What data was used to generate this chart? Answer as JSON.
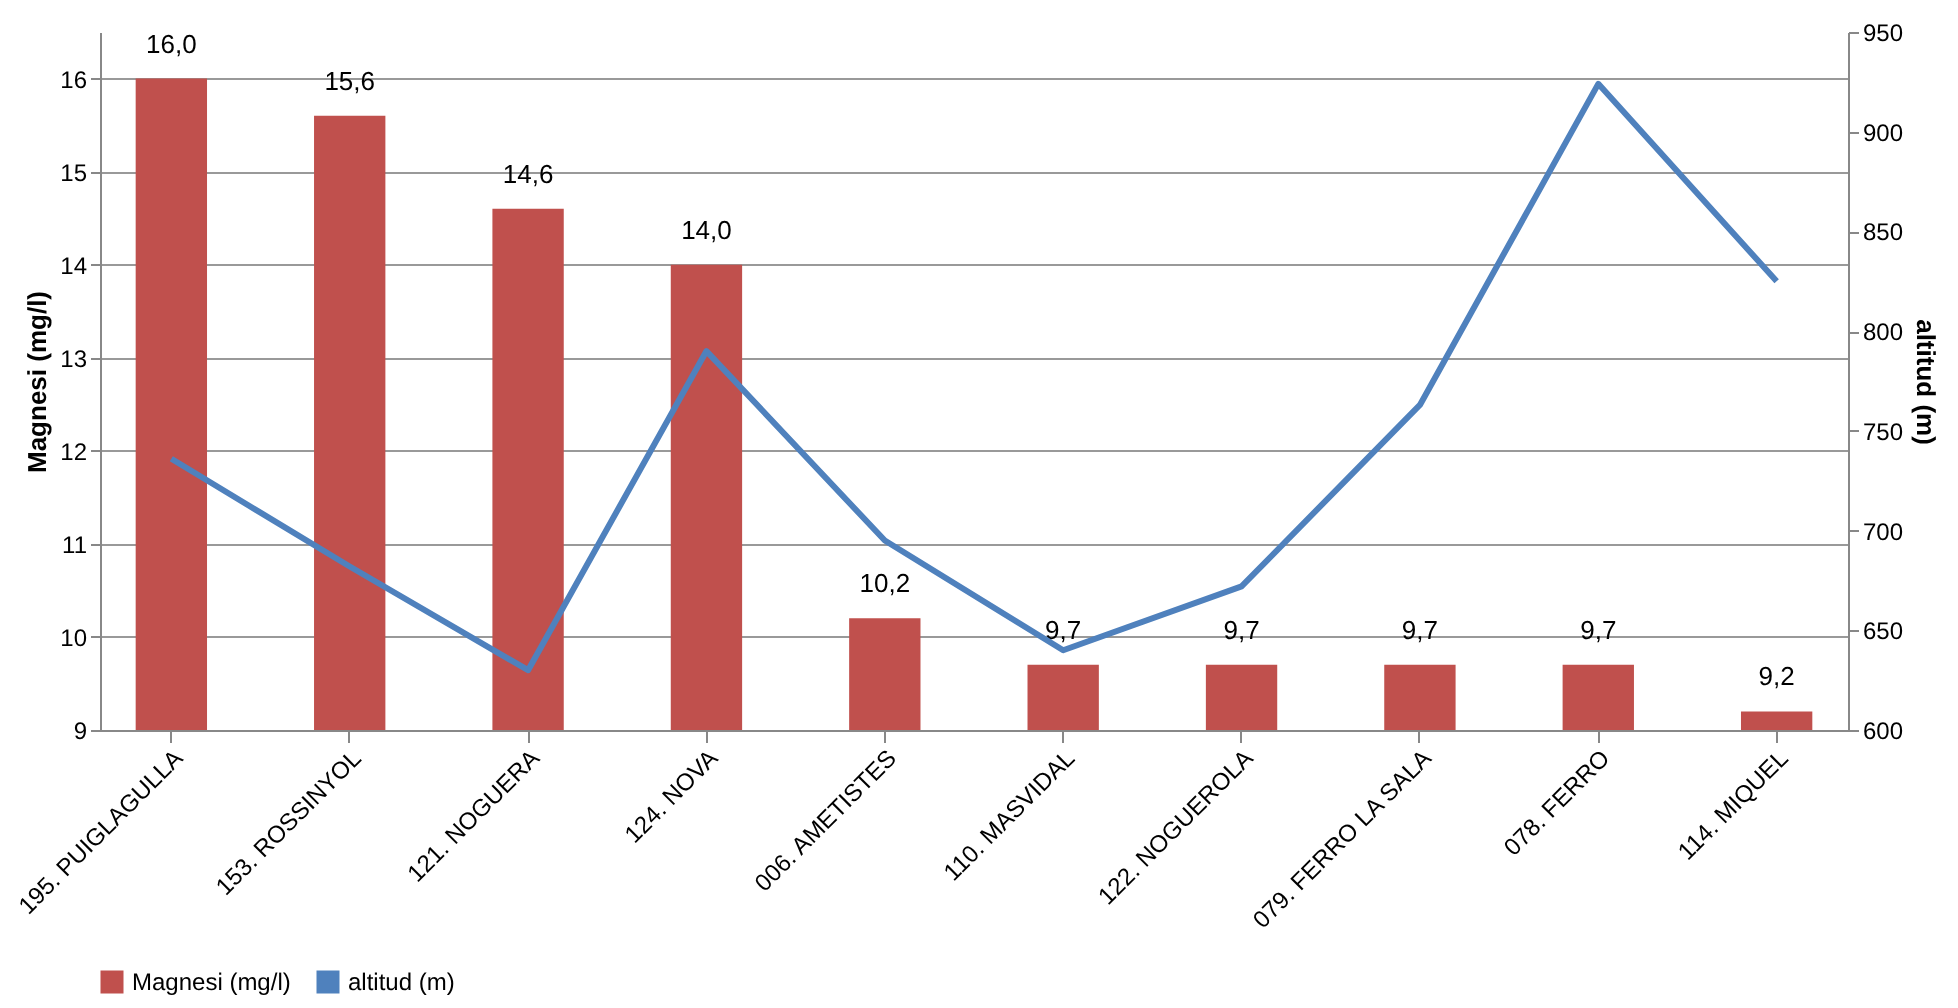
{
  "chart_data": {
    "type": "bar",
    "categories": [
      "195. PUIGLAGULLA",
      "153. ROSSINYOL",
      "121. NOGUERA",
      "124. NOVA",
      "006. AMETISTES",
      "110. MASVIDAL",
      "122. NOGUEROLA",
      "079. FERRO LA SALA",
      "078. FERRO",
      "114. MIQUEL"
    ],
    "series": [
      {
        "name": "Magnesi (mg/l)",
        "color": "#c0504d",
        "values": [
          16.0,
          15.6,
          14.6,
          14.0,
          10.2,
          9.7,
          9.7,
          9.7,
          9.7,
          9.2
        ],
        "value_labels": [
          "16,0",
          "15,6",
          "14,6",
          "14,0",
          "10,2",
          "9,7",
          "9,7",
          "9,7",
          "9,7",
          "9,2"
        ]
      },
      {
        "name": "altitud (m)",
        "type": "line",
        "axis": "y2",
        "color": "#4f81bd",
        "values": [
          736,
          682,
          630,
          790,
          695,
          640,
          672,
          763,
          924,
          825
        ]
      }
    ],
    "ylabel": "Magnesi (mg/l)",
    "y2label": "altitud (m)",
    "ylim": [
      9,
      16.5
    ],
    "yticks": [
      9,
      10,
      11,
      12,
      13,
      14,
      15,
      16
    ],
    "y2lim": [
      600,
      950
    ],
    "y2ticks": [
      600,
      650,
      700,
      750,
      800,
      850,
      900,
      950
    ],
    "grid": "y",
    "legend": "bottom",
    "marker": "none",
    "line_style": "solid"
  }
}
